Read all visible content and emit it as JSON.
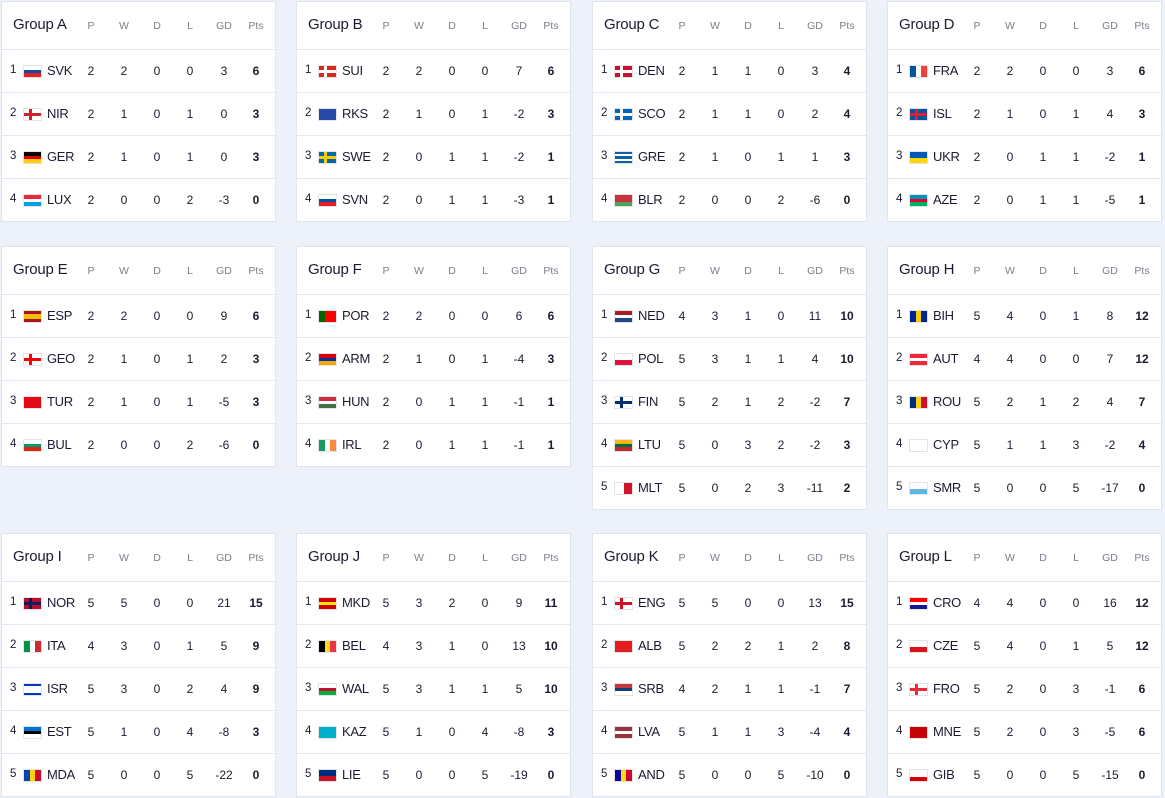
{
  "headers": {
    "p": "P",
    "w": "W",
    "d": "D",
    "l": "L",
    "gd": "GD",
    "pts": "Pts"
  },
  "groups": [
    {
      "title": "Group A",
      "rows": [
        [
          "1",
          "SVK",
          "2",
          "2",
          "0",
          "0",
          "3",
          "6"
        ],
        [
          "2",
          "NIR",
          "2",
          "1",
          "0",
          "1",
          "0",
          "3"
        ],
        [
          "3",
          "GER",
          "2",
          "1",
          "0",
          "1",
          "0",
          "3"
        ],
        [
          "4",
          "LUX",
          "2",
          "0",
          "0",
          "2",
          "-3",
          "0"
        ]
      ]
    },
    {
      "title": "Group B",
      "rows": [
        [
          "1",
          "SUI",
          "2",
          "2",
          "0",
          "0",
          "7",
          "6"
        ],
        [
          "2",
          "RKS",
          "2",
          "1",
          "0",
          "1",
          "-2",
          "3"
        ],
        [
          "3",
          "SWE",
          "2",
          "0",
          "1",
          "1",
          "-2",
          "1"
        ],
        [
          "4",
          "SVN",
          "2",
          "0",
          "1",
          "1",
          "-3",
          "1"
        ]
      ]
    },
    {
      "title": "Group C",
      "rows": [
        [
          "1",
          "DEN",
          "2",
          "1",
          "1",
          "0",
          "3",
          "4"
        ],
        [
          "2",
          "SCO",
          "2",
          "1",
          "1",
          "0",
          "2",
          "4"
        ],
        [
          "3",
          "GRE",
          "2",
          "1",
          "0",
          "1",
          "1",
          "3"
        ],
        [
          "4",
          "BLR",
          "2",
          "0",
          "0",
          "2",
          "-6",
          "0"
        ]
      ]
    },
    {
      "title": "Group D",
      "rows": [
        [
          "1",
          "FRA",
          "2",
          "2",
          "0",
          "0",
          "3",
          "6"
        ],
        [
          "2",
          "ISL",
          "2",
          "1",
          "0",
          "1",
          "4",
          "3"
        ],
        [
          "3",
          "UKR",
          "2",
          "0",
          "1",
          "1",
          "-2",
          "1"
        ],
        [
          "4",
          "AZE",
          "2",
          "0",
          "1",
          "1",
          "-5",
          "1"
        ]
      ]
    },
    {
      "title": "Group E",
      "rows": [
        [
          "1",
          "ESP",
          "2",
          "2",
          "0",
          "0",
          "9",
          "6"
        ],
        [
          "2",
          "GEO",
          "2",
          "1",
          "0",
          "1",
          "2",
          "3"
        ],
        [
          "3",
          "TUR",
          "2",
          "1",
          "0",
          "1",
          "-5",
          "3"
        ],
        [
          "4",
          "BUL",
          "2",
          "0",
          "0",
          "2",
          "-6",
          "0"
        ]
      ]
    },
    {
      "title": "Group F",
      "rows": [
        [
          "1",
          "POR",
          "2",
          "2",
          "0",
          "0",
          "6",
          "6"
        ],
        [
          "2",
          "ARM",
          "2",
          "1",
          "0",
          "1",
          "-4",
          "3"
        ],
        [
          "3",
          "HUN",
          "2",
          "0",
          "1",
          "1",
          "-1",
          "1"
        ],
        [
          "4",
          "IRL",
          "2",
          "0",
          "1",
          "1",
          "-1",
          "1"
        ]
      ]
    },
    {
      "title": "Group G",
      "rows": [
        [
          "1",
          "NED",
          "4",
          "3",
          "1",
          "0",
          "11",
          "10"
        ],
        [
          "2",
          "POL",
          "5",
          "3",
          "1",
          "1",
          "4",
          "10"
        ],
        [
          "3",
          "FIN",
          "5",
          "2",
          "1",
          "2",
          "-2",
          "7"
        ],
        [
          "4",
          "LTU",
          "5",
          "0",
          "3",
          "2",
          "-2",
          "3"
        ],
        [
          "5",
          "MLT",
          "5",
          "0",
          "2",
          "3",
          "-11",
          "2"
        ]
      ]
    },
    {
      "title": "Group H",
      "rows": [
        [
          "1",
          "BIH",
          "5",
          "4",
          "0",
          "1",
          "8",
          "12"
        ],
        [
          "2",
          "AUT",
          "4",
          "4",
          "0",
          "0",
          "7",
          "12"
        ],
        [
          "3",
          "ROU",
          "5",
          "2",
          "1",
          "2",
          "4",
          "7"
        ],
        [
          "4",
          "CYP",
          "5",
          "1",
          "1",
          "3",
          "-2",
          "4"
        ],
        [
          "5",
          "SMR",
          "5",
          "0",
          "0",
          "5",
          "-17",
          "0"
        ]
      ]
    },
    {
      "title": "Group I",
      "rows": [
        [
          "1",
          "NOR",
          "5",
          "5",
          "0",
          "0",
          "21",
          "15"
        ],
        [
          "2",
          "ITA",
          "4",
          "3",
          "0",
          "1",
          "5",
          "9"
        ],
        [
          "3",
          "ISR",
          "5",
          "3",
          "0",
          "2",
          "4",
          "9"
        ],
        [
          "4",
          "EST",
          "5",
          "1",
          "0",
          "4",
          "-8",
          "3"
        ],
        [
          "5",
          "MDA",
          "5",
          "0",
          "0",
          "5",
          "-22",
          "0"
        ]
      ]
    },
    {
      "title": "Group J",
      "rows": [
        [
          "1",
          "MKD",
          "5",
          "3",
          "2",
          "0",
          "9",
          "11"
        ],
        [
          "2",
          "BEL",
          "4",
          "3",
          "1",
          "0",
          "13",
          "10"
        ],
        [
          "3",
          "WAL",
          "5",
          "3",
          "1",
          "1",
          "5",
          "10"
        ],
        [
          "4",
          "KAZ",
          "5",
          "1",
          "0",
          "4",
          "-8",
          "3"
        ],
        [
          "5",
          "LIE",
          "5",
          "0",
          "0",
          "5",
          "-19",
          "0"
        ]
      ]
    },
    {
      "title": "Group K",
      "rows": [
        [
          "1",
          "ENG",
          "5",
          "5",
          "0",
          "0",
          "13",
          "15"
        ],
        [
          "2",
          "ALB",
          "5",
          "2",
          "2",
          "1",
          "2",
          "8"
        ],
        [
          "3",
          "SRB",
          "4",
          "2",
          "1",
          "1",
          "-1",
          "7"
        ],
        [
          "4",
          "LVA",
          "5",
          "1",
          "1",
          "3",
          "-4",
          "4"
        ],
        [
          "5",
          "AND",
          "5",
          "0",
          "0",
          "5",
          "-10",
          "0"
        ]
      ]
    },
    {
      "title": "Group L",
      "rows": [
        [
          "1",
          "CRO",
          "4",
          "4",
          "0",
          "0",
          "16",
          "12"
        ],
        [
          "2",
          "CZE",
          "5",
          "4",
          "0",
          "1",
          "5",
          "12"
        ],
        [
          "3",
          "FRO",
          "5",
          "2",
          "0",
          "3",
          "-1",
          "6"
        ],
        [
          "4",
          "MNE",
          "5",
          "2",
          "0",
          "3",
          "-5",
          "6"
        ],
        [
          "5",
          "GIB",
          "5",
          "0",
          "0",
          "5",
          "-15",
          "0"
        ]
      ]
    }
  ],
  "flags": {
    "SVK": {
      "d": "h",
      "c": [
        "#ffffff",
        "#0b4ea2",
        "#ee1c25"
      ]
    },
    "NIR": {
      "d": "x",
      "c": [
        "#ffffff",
        "#d0202e"
      ]
    },
    "GER": {
      "d": "h",
      "c": [
        "#000000",
        "#dd0000",
        "#ffce00"
      ]
    },
    "LUX": {
      "d": "h",
      "c": [
        "#ed2939",
        "#ffffff",
        "#00a1de"
      ]
    },
    "SUI": {
      "d": "x",
      "c": [
        "#da291c",
        "#ffffff"
      ]
    },
    "RKS": {
      "d": "h",
      "c": [
        "#244aa5"
      ]
    },
    "SWE": {
      "d": "x",
      "c": [
        "#006aa7",
        "#fecc00"
      ]
    },
    "SVN": {
      "d": "h",
      "c": [
        "#ffffff",
        "#0051a0",
        "#ed1c24"
      ]
    },
    "DEN": {
      "d": "x",
      "c": [
        "#c8102e",
        "#ffffff"
      ]
    },
    "SCO": {
      "d": "x",
      "c": [
        "#0065bd",
        "#ffffff"
      ]
    },
    "GRE": {
      "d": "h",
      "c": [
        "#0d5eaf",
        "#ffffff",
        "#0d5eaf",
        "#ffffff",
        "#0d5eaf"
      ]
    },
    "BLR": {
      "d": "h",
      "c": [
        "#c8313e",
        "#c8313e",
        "#4aa657"
      ]
    },
    "FRA": {
      "d": "v",
      "c": [
        "#0055a4",
        "#ffffff",
        "#ef4135"
      ]
    },
    "ISL": {
      "d": "x",
      "c": [
        "#02529c",
        "#dc1e35"
      ]
    },
    "UKR": {
      "d": "h",
      "c": [
        "#0057b7",
        "#ffd700"
      ]
    },
    "AZE": {
      "d": "h",
      "c": [
        "#0092bc",
        "#e4002b",
        "#00af66"
      ]
    },
    "ESP": {
      "d": "h",
      "c": [
        "#aa151b",
        "#f1bf00",
        "#f1bf00",
        "#aa151b"
      ]
    },
    "GEO": {
      "d": "x",
      "c": [
        "#ffffff",
        "#ff0000"
      ]
    },
    "TUR": {
      "d": "h",
      "c": [
        "#e30a17"
      ]
    },
    "BUL": {
      "d": "h",
      "c": [
        "#ffffff",
        "#00966e",
        "#d62612"
      ]
    },
    "POR": {
      "d": "v",
      "c": [
        "#006600",
        "#ff0000",
        "#ff0000"
      ]
    },
    "ARM": {
      "d": "h",
      "c": [
        "#d90012",
        "#0033a0",
        "#f2a800"
      ]
    },
    "HUN": {
      "d": "h",
      "c": [
        "#cd2a3e",
        "#ffffff",
        "#436f4d"
      ]
    },
    "IRL": {
      "d": "v",
      "c": [
        "#169b62",
        "#ffffff",
        "#ff883e"
      ]
    },
    "NED": {
      "d": "h",
      "c": [
        "#ae1c28",
        "#ffffff",
        "#21468b"
      ]
    },
    "POL": {
      "d": "h",
      "c": [
        "#ffffff",
        "#dc143c"
      ]
    },
    "FIN": {
      "d": "x",
      "c": [
        "#ffffff",
        "#002f6c"
      ]
    },
    "LTU": {
      "d": "h",
      "c": [
        "#fdb913",
        "#006a44",
        "#c1272d"
      ]
    },
    "MLT": {
      "d": "v",
      "c": [
        "#ffffff",
        "#cf142b"
      ]
    },
    "BIH": {
      "d": "v",
      "c": [
        "#002395",
        "#fecb00",
        "#002395"
      ]
    },
    "AUT": {
      "d": "h",
      "c": [
        "#ed2939",
        "#ffffff",
        "#ed2939"
      ]
    },
    "ROU": {
      "d": "v",
      "c": [
        "#002b7f",
        "#fcd116",
        "#ce1126"
      ]
    },
    "CYP": {
      "d": "h",
      "c": [
        "#ffffff"
      ]
    },
    "SMR": {
      "d": "h",
      "c": [
        "#ffffff",
        "#5eb6e4"
      ]
    },
    "NOR": {
      "d": "x",
      "c": [
        "#ba0c2f",
        "#00205b"
      ]
    },
    "ITA": {
      "d": "v",
      "c": [
        "#009246",
        "#ffffff",
        "#ce2b37"
      ]
    },
    "ISR": {
      "d": "h",
      "c": [
        "#0038b8",
        "#ffffff",
        "#ffffff",
        "#ffffff",
        "#0038b8"
      ]
    },
    "EST": {
      "d": "h",
      "c": [
        "#0072ce",
        "#000000",
        "#ffffff"
      ]
    },
    "MDA": {
      "d": "v",
      "c": [
        "#0046ae",
        "#ffd200",
        "#cc092f"
      ]
    },
    "MKD": {
      "d": "h",
      "c": [
        "#d20000",
        "#ffe600",
        "#d20000"
      ]
    },
    "BEL": {
      "d": "v",
      "c": [
        "#000000",
        "#fdda24",
        "#ef3340"
      ]
    },
    "WAL": {
      "d": "h",
      "c": [
        "#ffffff",
        "#c8102e",
        "#00b140"
      ]
    },
    "KAZ": {
      "d": "h",
      "c": [
        "#00afca"
      ]
    },
    "LIE": {
      "d": "h",
      "c": [
        "#002b7f",
        "#ce1126"
      ]
    },
    "ENG": {
      "d": "x",
      "c": [
        "#ffffff",
        "#ce1124"
      ]
    },
    "ALB": {
      "d": "h",
      "c": [
        "#e41e20"
      ]
    },
    "SRB": {
      "d": "h",
      "c": [
        "#c6363c",
        "#0c4076",
        "#ffffff"
      ]
    },
    "LVA": {
      "d": "h",
      "c": [
        "#9e3039",
        "#ffffff",
        "#9e3039"
      ]
    },
    "AND": {
      "d": "v",
      "c": [
        "#10069f",
        "#fedd00",
        "#d50032"
      ]
    },
    "CRO": {
      "d": "h",
      "c": [
        "#ff0000",
        "#ffffff",
        "#171796"
      ]
    },
    "CZE": {
      "d": "h",
      "c": [
        "#ffffff",
        "#d7141a"
      ]
    },
    "FRO": {
      "d": "x",
      "c": [
        "#ffffff",
        "#ed2939"
      ]
    },
    "MNE": {
      "d": "h",
      "c": [
        "#c40308"
      ]
    },
    "GIB": {
      "d": "h",
      "c": [
        "#ffffff",
        "#ffffff",
        "#da000c"
      ]
    }
  }
}
